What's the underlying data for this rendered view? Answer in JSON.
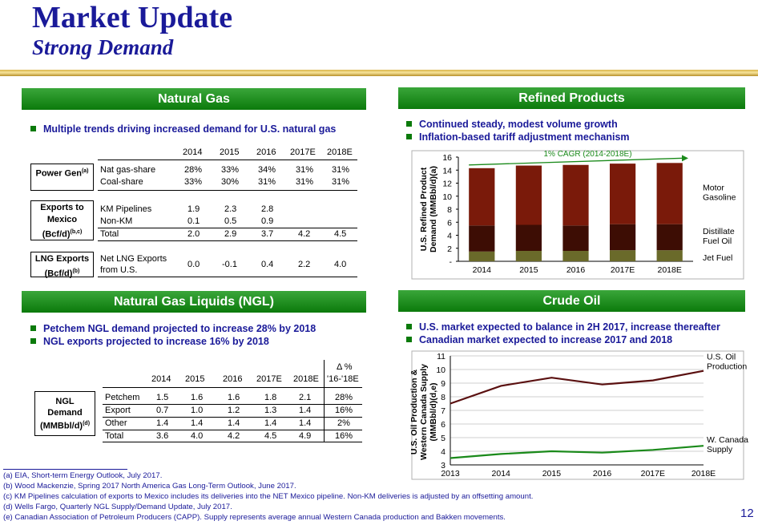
{
  "header": {
    "title": "Market Update",
    "subtitle": "Strong Demand"
  },
  "colors": {
    "title": "#1a1a99",
    "banner": "#0b7a0b",
    "bar_top": "#7a1a0a",
    "bar_mid": "#3d0d04",
    "bar_base": "#6a6a2a",
    "crude_us": "#5a1010",
    "crude_wc": "#1a8a1a"
  },
  "nat_gas": {
    "banner": "Natural Gas",
    "bullet": "Multiple trends driving increased demand for U.S. natural gas",
    "years": [
      "2014",
      "2015",
      "2016",
      "2017E",
      "2018E"
    ],
    "power_gen": {
      "label": "Power Gen",
      "note": "(a)",
      "rows": [
        {
          "name": "Nat gas-share",
          "values": [
            "28%",
            "33%",
            "34%",
            "31%",
            "31%"
          ]
        },
        {
          "name": "Coal-share",
          "values": [
            "33%",
            "30%",
            "31%",
            "31%",
            "31%"
          ]
        }
      ]
    },
    "exports": {
      "label1": "Exports to",
      "label2": "Mexico",
      "label3": "(Bcf/d)",
      "note": "(b,c)",
      "rows": [
        {
          "name": "KM Pipelines",
          "values": [
            "1.9",
            "2.3",
            "2.8",
            "",
            ""
          ]
        },
        {
          "name": "Non-KM",
          "values": [
            "0.1",
            "0.5",
            "0.9",
            "",
            ""
          ]
        },
        {
          "name": "Total",
          "values": [
            "2.0",
            "2.9",
            "3.7",
            "4.2",
            "4.5"
          ]
        }
      ]
    },
    "lng": {
      "label1": "LNG Exports",
      "label2": "(Bcf/d)",
      "note": "(b)",
      "row_name1": "Net LNG Exports",
      "row_name2": "from U.S.",
      "values": [
        "0.0",
        "-0.1",
        "0.4",
        "2.2",
        "4.0"
      ]
    }
  },
  "ngl": {
    "banner": "Natural Gas Liquids (NGL)",
    "bullets": [
      "Petchem NGL demand projected to increase 28% by 2018",
      "NGL exports projected to increase 16% by 2018"
    ],
    "delta_header1": "Δ %",
    "delta_header2": "'16-'18E",
    "years": [
      "2014",
      "2015",
      "2016",
      "2017E",
      "2018E"
    ],
    "label1": "NGL",
    "label2": "Demand",
    "label3": "(MMBbl/d)",
    "note": "(d)",
    "rows": [
      {
        "name": "Petchem",
        "values": [
          "1.5",
          "1.6",
          "1.6",
          "1.8",
          "2.1"
        ],
        "delta": "28%"
      },
      {
        "name": "Export",
        "values": [
          "0.7",
          "1.0",
          "1.2",
          "1.3",
          "1.4"
        ],
        "delta": "16%"
      },
      {
        "name": "Other",
        "values": [
          "1.4",
          "1.4",
          "1.4",
          "1.4",
          "1.4"
        ],
        "delta": "2%"
      },
      {
        "name": "Total",
        "values": [
          "3.6",
          "4.0",
          "4.2",
          "4.5",
          "4.9"
        ],
        "delta": "16%"
      }
    ]
  },
  "refined": {
    "banner": "Refined Products",
    "bullets": [
      "Continued steady, modest volume growth",
      "Inflation-based tariff adjustment mechanism"
    ]
  },
  "crude": {
    "banner": "Crude Oil",
    "bullets": [
      "U.S. market expected to balance in 2H 2017, increase thereafter",
      "Canadian market expected to increase 2017 and 2018"
    ]
  },
  "chart_data": [
    {
      "type": "bar",
      "stacked": true,
      "ylabel_line1": "U.S. Refined Product",
      "ylabel_line2": "Demand (MMBbl/d)",
      "ylabel_note": "(a)",
      "categories": [
        "2014",
        "2015",
        "2016",
        "2017E",
        "2018E"
      ],
      "ylim": [
        0,
        16
      ],
      "yticks": [
        "-",
        "2",
        "4",
        "6",
        "8",
        "10",
        "12",
        "14",
        "16"
      ],
      "annotation": "1% CAGR (2014-2018E)",
      "series": [
        {
          "name": "Jet Fuel",
          "values": [
            1.5,
            1.6,
            1.6,
            1.7,
            1.7
          ]
        },
        {
          "name": "Distillate Fuel Oil",
          "values": [
            4.0,
            4.0,
            3.9,
            4.0,
            4.0
          ]
        },
        {
          "name": "Motor Gasoline",
          "values": [
            8.8,
            9.1,
            9.3,
            9.3,
            9.4
          ]
        }
      ],
      "legend_lines": [
        [
          "Motor",
          "Gasoline"
        ],
        [
          "Distillate",
          "Fuel Oil"
        ],
        [
          "Jet Fuel"
        ]
      ]
    },
    {
      "type": "line",
      "ylabel_line1": "U.S. Oil Production &",
      "ylabel_line2": "Western Canada Supply",
      "ylabel_line3": "(MMBbl/d)",
      "ylabel_note": "(d,e)",
      "categories": [
        "2013",
        "2014",
        "2015",
        "2016",
        "2017E",
        "2018E"
      ],
      "ylim": [
        3,
        11
      ],
      "yticks": [
        "3",
        "4",
        "5",
        "6",
        "7",
        "8",
        "9",
        "10",
        "11"
      ],
      "grid": true,
      "series": [
        {
          "name": "U.S. Oil Production",
          "values": [
            7.5,
            8.8,
            9.4,
            8.9,
            9.2,
            9.9
          ]
        },
        {
          "name": "W. Canada Supply",
          "values": [
            3.5,
            3.8,
            4.0,
            3.9,
            4.1,
            4.4
          ]
        }
      ],
      "legend_lines": [
        [
          "U.S. Oil",
          "Production"
        ],
        [
          "W. Canada",
          "Supply"
        ]
      ]
    }
  ],
  "footnotes": [
    "(a) EIA, Short-term Energy Outlook, July 2017.",
    "(b) Wood Mackenzie, Spring 2017 North America Gas Long-Term Outlook, June 2017.",
    "(c) KM Pipelines calculation of exports to Mexico includes its deliveries into the NET Mexico pipeline. Non-KM deliveries is adjusted by an offsetting amount.",
    "(d) Wells Fargo, Quarterly NGL Supply/Demand Update, July 2017.",
    "(e) Canadian Association of Petroleum Producers (CAPP). Supply represents average annual Western Canada production and Bakken movements."
  ],
  "page_number": "12"
}
